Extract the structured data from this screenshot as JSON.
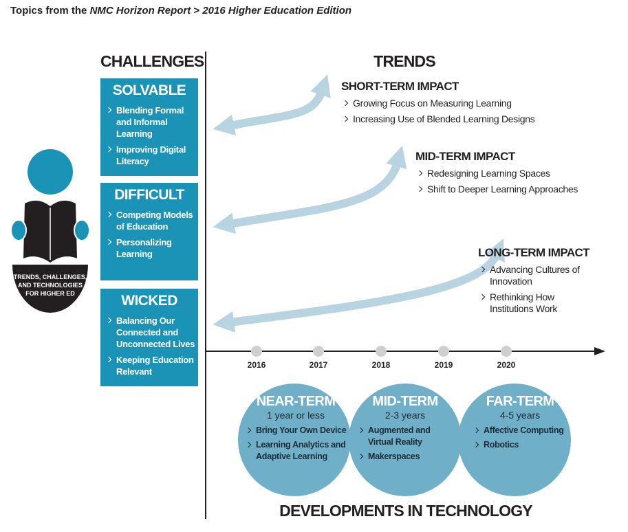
{
  "header": {
    "title_lead": "Topics from the",
    "title_report": "NMC Horizon Report",
    "title_separator": ">",
    "title_edition": "2016 Higher Education Edition"
  },
  "challenges": {
    "heading": "CHALLENGES",
    "groups": [
      {
        "title": "SOLVABLE",
        "items": [
          "Blending Formal and Informal Learning",
          "Improving Digital Literacy"
        ]
      },
      {
        "title": "DIFFICULT",
        "items": [
          "Competing Models of Education",
          "Personalizing Learning"
        ]
      },
      {
        "title": "WICKED",
        "items": [
          "Balancing Our Connected and Unconnected Lives",
          "Keeping Education Relevant"
        ]
      }
    ]
  },
  "icon": {
    "caption_lines": [
      "TRENDS, CHALLENGES,",
      "AND TECHNOLOGIES",
      "FOR HIGHER ED"
    ]
  },
  "trends": {
    "heading": "TRENDS",
    "groups": [
      {
        "title": "SHORT-TERM IMPACT",
        "items": [
          "Growing Focus on Measuring Learning",
          "Increasing Use of Blended Learning Designs"
        ]
      },
      {
        "title": "MID-TERM IMPACT",
        "items": [
          "Redesigning Learning Spaces",
          "Shift to Deeper Learning Approaches"
        ]
      },
      {
        "title": "LONG-TERM IMPACT",
        "items": [
          "Advancing Cultures of Innovation",
          "Rethinking How Institutions Work"
        ]
      }
    ]
  },
  "timeline": {
    "years": [
      "2016",
      "2017",
      "2018",
      "2019",
      "2020"
    ]
  },
  "technology": {
    "heading": "DEVELOPMENTS IN TECHNOLOGY",
    "groups": [
      {
        "title": "NEAR-TERM",
        "horizon": "1 year or less",
        "items": [
          "Bring Your Own Device",
          "Learning Analytics and Adaptive Learning"
        ]
      },
      {
        "title": "MID-TERM",
        "horizon": "2-3 years",
        "items": [
          "Augmented and Virtual Reality",
          "Makerspaces"
        ]
      },
      {
        "title": "FAR-TERM",
        "horizon": "4-5 years",
        "items": [
          "Affective Computing",
          "Robotics"
        ]
      }
    ]
  }
}
